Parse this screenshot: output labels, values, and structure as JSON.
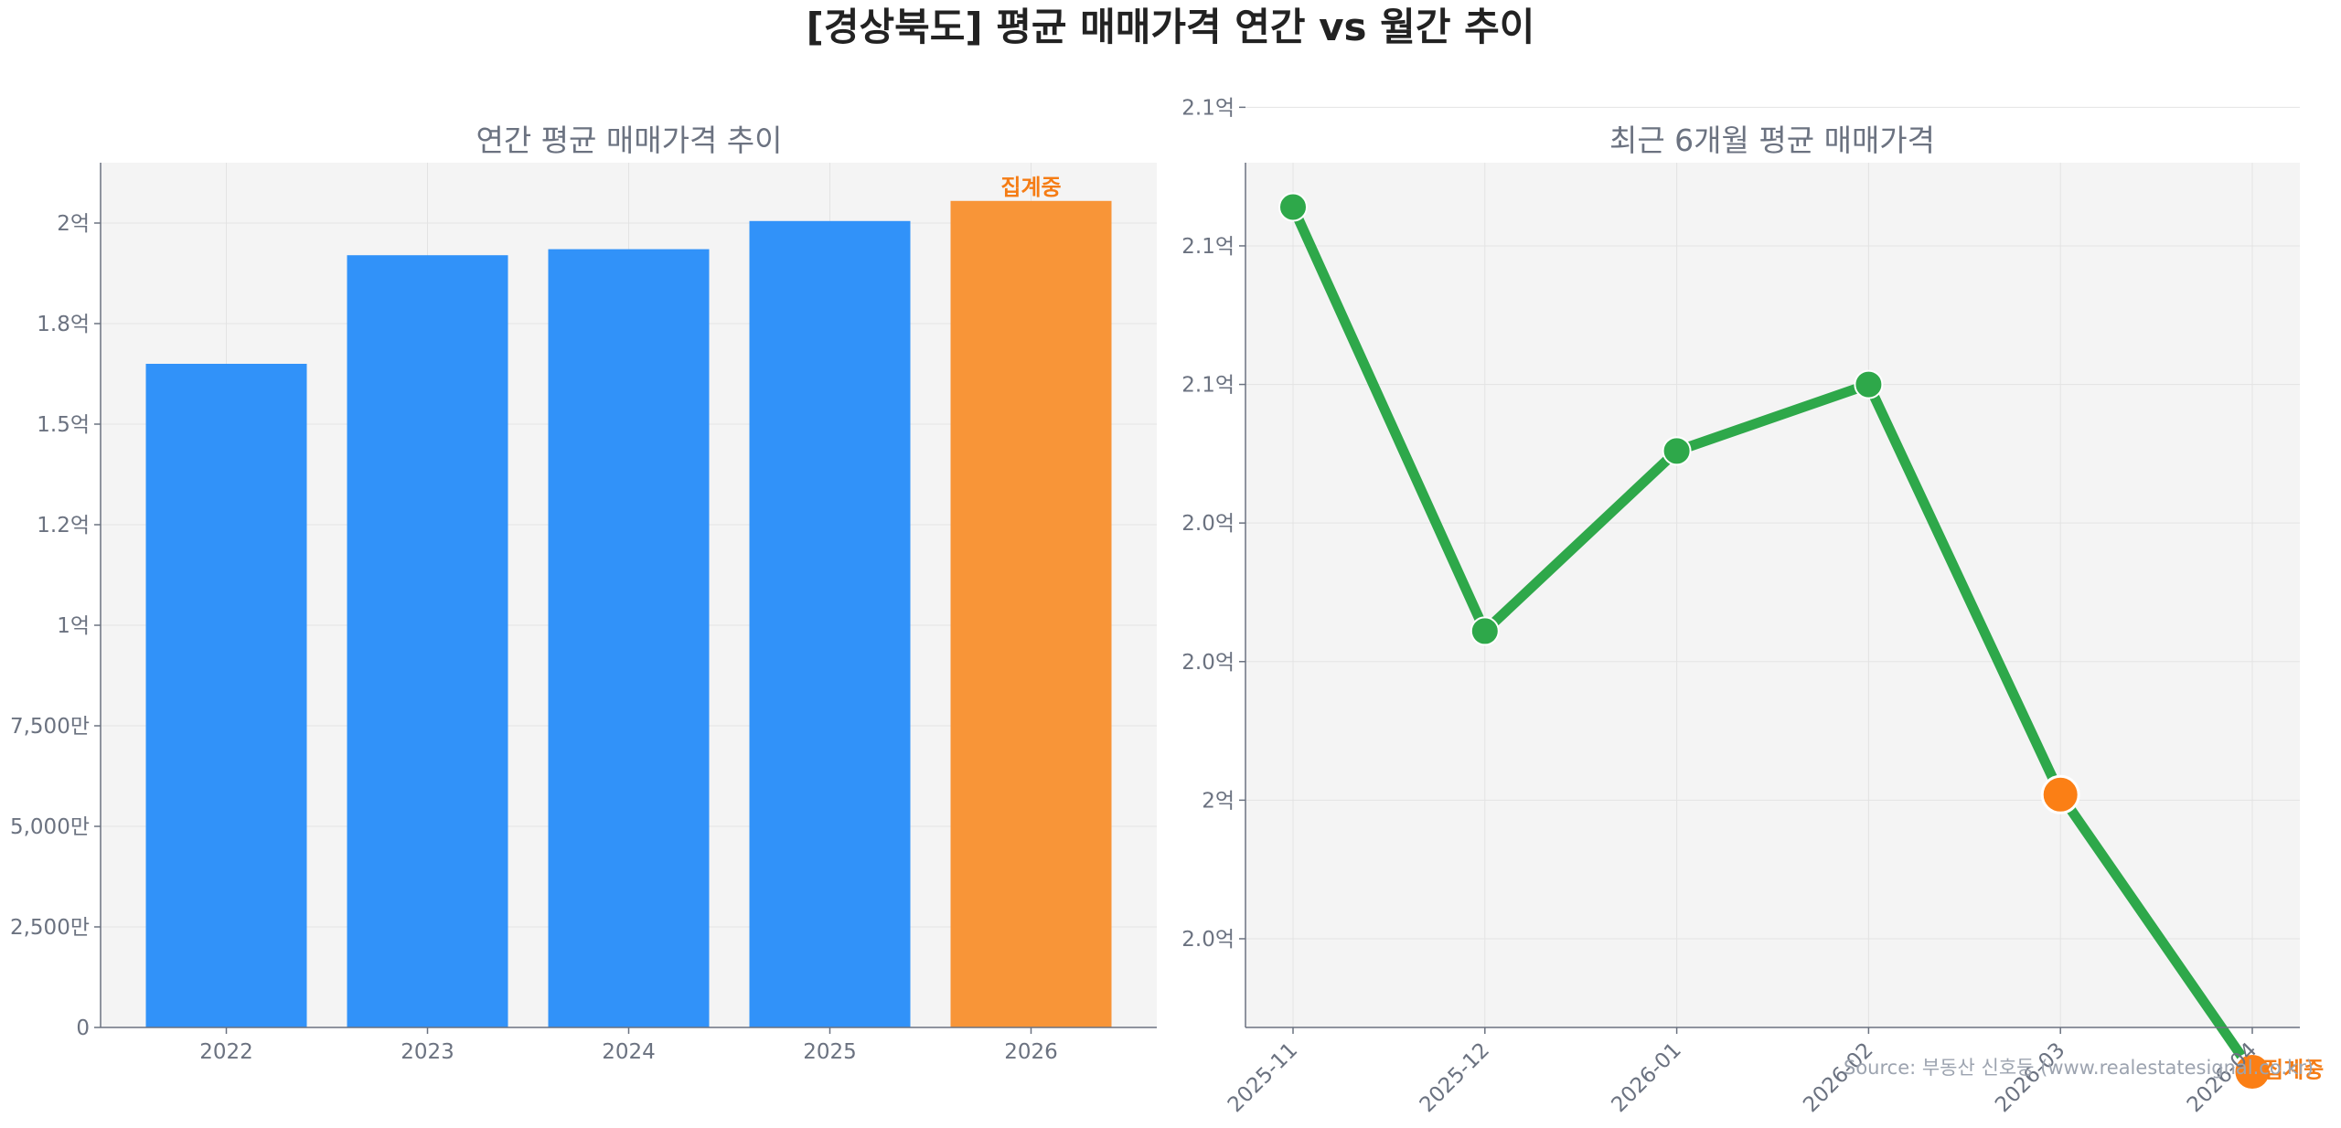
{
  "title": "[경상북도] 평균 매매가격 연간 vs 월간 추이",
  "source": "Source: 부동산 신호등 (www.realestatesignal.co.kr)",
  "colors": {
    "bar": "#3192f9",
    "highlight": "#f89538",
    "line": "#2ea84a",
    "point_highlight": "#fb7f15",
    "badge_text": "#f57c14",
    "panel_bg": "#f4f4f4",
    "grid": "#e3e3e3"
  },
  "chart_data": [
    {
      "type": "bar",
      "title": "연간 평균 매매가격 추이",
      "categories": [
        "2022",
        "2023",
        "2024",
        "2025",
        "2026"
      ],
      "values": [
        165000000,
        192000000,
        193500000,
        200500000,
        205500000
      ],
      "highlight_index": 4,
      "annotation": "집계중",
      "ylim": [
        0,
        215000000
      ],
      "yticks": [
        {
          "value": 0,
          "label": "0"
        },
        {
          "value": 25000000,
          "label": "2,500만"
        },
        {
          "value": 50000000,
          "label": "5,000만"
        },
        {
          "value": 75000000,
          "label": "7,500만"
        },
        {
          "value": 100000000,
          "label": "1억"
        },
        {
          "value": 125000000,
          "label": "1.2억"
        },
        {
          "value": 150000000,
          "label": "1.5억"
        },
        {
          "value": 175000000,
          "label": "1.8억"
        },
        {
          "value": 200000000,
          "label": "2억"
        }
      ],
      "grid": true
    },
    {
      "type": "line",
      "title": "최근 6개월 평균 매매가격",
      "categories": [
        "2025-11",
        "2025-12",
        "2026-01",
        "2026-02",
        "2026-03",
        "2026-04"
      ],
      "values": [
        206140000,
        204610000,
        205260000,
        205500000,
        204020000,
        203020000
      ],
      "highlight_from_index": 4,
      "annotation": "집계중",
      "ylim": [
        203180000,
        206300000
      ],
      "yticks": [
        {
          "value": 203500000,
          "label": "2.0억"
        },
        {
          "value": 204000000,
          "label": "2억"
        },
        {
          "value": 204500000,
          "label": "2.0억"
        },
        {
          "value": 205000000,
          "label": "2.0억"
        },
        {
          "value": 205500000,
          "label": "2.1억"
        },
        {
          "value": 206000000,
          "label": "2.1억"
        },
        {
          "value": 206500000,
          "label": "2.1억"
        }
      ],
      "grid": true
    }
  ]
}
